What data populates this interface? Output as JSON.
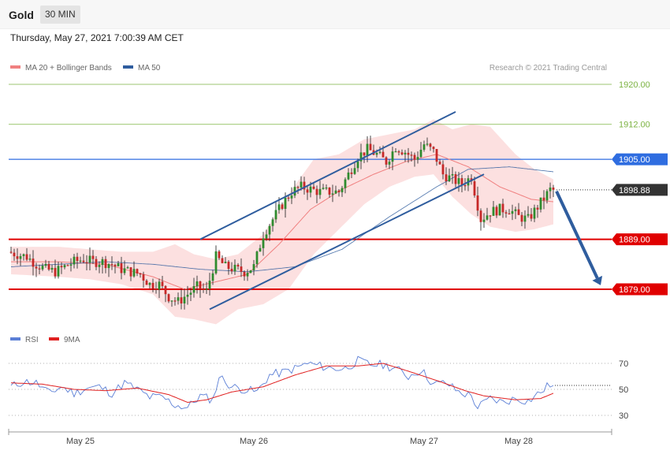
{
  "header": {
    "instrument": "Gold",
    "timeframe": "30 MIN"
  },
  "timestamp": "Thursday, May 27, 2021 7:00:39 AM CET",
  "legend_main": [
    {
      "label": "MA 20 + Bollinger Bands",
      "color": "#f08080"
    },
    {
      "label": "MA 50",
      "color": "#2f5d9e"
    }
  ],
  "credit": "Research © 2021 Trading Central",
  "legend_rsi": [
    {
      "label": "RSI",
      "color": "#5b7fd6"
    },
    {
      "label": "9MA",
      "color": "#e02020"
    }
  ],
  "chart_data": [
    {
      "type": "candlestick",
      "title": "",
      "price_range": [
        1867,
        1923
      ],
      "x_ticks": [
        {
          "label": "May 25",
          "bar": 22
        },
        {
          "label": "May 26",
          "bar": 77
        },
        {
          "label": "May 27",
          "bar": 131
        },
        {
          "label": "May 28",
          "bar": 161
        }
      ],
      "levels": [
        {
          "value": 1920.0,
          "label": "1920.00",
          "color": "#7cb342",
          "kind": "resistance",
          "style": "thin"
        },
        {
          "value": 1912.0,
          "label": "1912.00",
          "color": "#7cb342",
          "kind": "resistance",
          "style": "thin"
        },
        {
          "value": 1905.0,
          "label": "1905.00",
          "color": "#2f6de0",
          "kind": "pivot",
          "style": "solid-badge"
        },
        {
          "value": 1898.88,
          "label": "1898.88",
          "color": "#333333",
          "kind": "last",
          "style": "dotted-badge"
        },
        {
          "value": 1889.0,
          "label": "1889.00",
          "color": "#e00000",
          "kind": "support",
          "style": "thick-badge"
        },
        {
          "value": 1879.0,
          "label": "1879.00",
          "color": "#e00000",
          "kind": "support",
          "style": "thick-badge"
        }
      ],
      "anchors": [
        [
          0,
          1886.5
        ],
        [
          3,
          1886.0
        ],
        [
          6,
          1885.5
        ],
        [
          9,
          1884.0
        ],
        [
          12,
          1883.0
        ],
        [
          15,
          1882.5
        ],
        [
          18,
          1883.5
        ],
        [
          21,
          1884.5
        ],
        [
          24,
          1885.0
        ],
        [
          27,
          1884.5
        ],
        [
          30,
          1884.5
        ],
        [
          33,
          1884.0
        ],
        [
          36,
          1883.0
        ],
        [
          39,
          1882.5
        ],
        [
          42,
          1882.0
        ],
        [
          45,
          1880.0
        ],
        [
          48,
          1880.0
        ],
        [
          51,
          1877.5
        ],
        [
          54,
          1876.5
        ],
        [
          57,
          1878.0
        ],
        [
          60,
          1879.5
        ],
        [
          63,
          1878.5
        ],
        [
          66,
          1885.5
        ],
        [
          69,
          1883.5
        ],
        [
          72,
          1883.0
        ],
        [
          75,
          1882.5
        ],
        [
          78,
          1883.5
        ],
        [
          81,
          1890.0
        ],
        [
          84,
          1893.0
        ],
        [
          87,
          1896.0
        ],
        [
          90,
          1898.5
        ],
        [
          93,
          1899.5
        ],
        [
          96,
          1899.0
        ],
        [
          99,
          1898.5
        ],
        [
          102,
          1898.5
        ],
        [
          105,
          1898.5
        ],
        [
          108,
          1902.0
        ],
        [
          111,
          1905.5
        ],
        [
          114,
          1907.0
        ],
        [
          117,
          1906.0
        ],
        [
          120,
          1904.5
        ],
        [
          123,
          1907.5
        ],
        [
          126,
          1906.5
        ],
        [
          129,
          1905.0
        ],
        [
          132,
          1908.0
        ],
        [
          135,
          1906.5
        ],
        [
          138,
          1902.0
        ],
        [
          141,
          1901.0
        ],
        [
          144,
          1900.0
        ],
        [
          147,
          1901.5
        ],
        [
          150,
          1893.0
        ],
        [
          153,
          1894.5
        ],
        [
          156,
          1895.0
        ],
        [
          159,
          1895.0
        ],
        [
          162,
          1893.5
        ],
        [
          165,
          1893.0
        ],
        [
          168,
          1895.5
        ],
        [
          172,
          1898.9
        ]
      ],
      "ma50": [
        [
          0,
          1883.5
        ],
        [
          15,
          1884.0
        ],
        [
          30,
          1884.5
        ],
        [
          45,
          1884.0
        ],
        [
          60,
          1883.0
        ],
        [
          75,
          1882.5
        ],
        [
          90,
          1883.5
        ],
        [
          105,
          1887.0
        ],
        [
          120,
          1893.5
        ],
        [
          135,
          1899.5
        ],
        [
          145,
          1903.0
        ],
        [
          158,
          1903.5
        ],
        [
          172,
          1902.5
        ]
      ],
      "ma20": [
        [
          0,
          1884.5
        ],
        [
          15,
          1884.5
        ],
        [
          30,
          1884.0
        ],
        [
          45,
          1881.5
        ],
        [
          55,
          1879.0
        ],
        [
          65,
          1880.5
        ],
        [
          75,
          1882.0
        ],
        [
          85,
          1888.0
        ],
        [
          95,
          1895.0
        ],
        [
          105,
          1899.0
        ],
        [
          115,
          1902.0
        ],
        [
          125,
          1904.5
        ],
        [
          135,
          1906.0
        ],
        [
          145,
          1903.5
        ],
        [
          155,
          1899.5
        ],
        [
          165,
          1897.0
        ],
        [
          172,
          1896.5
        ]
      ],
      "bb_upper": [
        [
          0,
          1887.5
        ],
        [
          15,
          1887.5
        ],
        [
          25,
          1887.0
        ],
        [
          35,
          1886.5
        ],
        [
          45,
          1886.5
        ],
        [
          52,
          1888.0
        ],
        [
          58,
          1886.0
        ],
        [
          65,
          1885.0
        ],
        [
          72,
          1886.0
        ],
        [
          80,
          1890.0
        ],
        [
          88,
          1898.0
        ],
        [
          96,
          1905.0
        ],
        [
          104,
          1906.0
        ],
        [
          112,
          1909.0
        ],
        [
          120,
          1910.0
        ],
        [
          128,
          1911.0
        ],
        [
          134,
          1913.0
        ],
        [
          140,
          1911.0
        ],
        [
          146,
          1912.0
        ],
        [
          152,
          1911.5
        ],
        [
          160,
          1906.0
        ],
        [
          166,
          1903.0
        ],
        [
          172,
          1901.0
        ]
      ],
      "bb_lower": [
        [
          0,
          1882.0
        ],
        [
          15,
          1881.5
        ],
        [
          25,
          1881.0
        ],
        [
          35,
          1880.0
        ],
        [
          45,
          1878.0
        ],
        [
          52,
          1873.5
        ],
        [
          58,
          1873.0
        ],
        [
          65,
          1872.0
        ],
        [
          72,
          1875.0
        ],
        [
          80,
          1876.0
        ],
        [
          88,
          1879.0
        ],
        [
          96,
          1886.0
        ],
        [
          104,
          1891.0
        ],
        [
          112,
          1896.0
        ],
        [
          120,
          1899.5
        ],
        [
          128,
          1901.5
        ],
        [
          134,
          1902.0
        ],
        [
          140,
          1897.5
        ],
        [
          146,
          1894.0
        ],
        [
          152,
          1891.5
        ],
        [
          160,
          1890.5
        ],
        [
          166,
          1891.0
        ],
        [
          172,
          1892.0
        ]
      ],
      "channel": {
        "upper": {
          "from": [
            60,
            1889.0
          ],
          "to": [
            141,
            1914.5
          ]
        },
        "lower": {
          "from": [
            63,
            1875.0
          ],
          "to": [
            150,
            1902.0
          ]
        }
      },
      "forecast_arrow": {
        "from": [
          173,
          1898.6
        ],
        "to": [
          187,
          1879.8
        ]
      }
    },
    {
      "type": "line",
      "title": "",
      "ylim": [
        20,
        80
      ],
      "y_ticks": [
        30,
        50,
        70
      ],
      "anchors_rsi": [
        [
          0,
          52
        ],
        [
          4,
          56
        ],
        [
          8,
          55
        ],
        [
          12,
          47
        ],
        [
          16,
          52
        ],
        [
          20,
          47
        ],
        [
          24,
          51
        ],
        [
          28,
          52
        ],
        [
          32,
          47
        ],
        [
          36,
          55
        ],
        [
          40,
          50
        ],
        [
          44,
          44
        ],
        [
          48,
          44
        ],
        [
          52,
          38
        ],
        [
          56,
          36
        ],
        [
          60,
          45
        ],
        [
          64,
          42
        ],
        [
          66,
          60
        ],
        [
          70,
          52
        ],
        [
          74,
          50
        ],
        [
          78,
          48
        ],
        [
          82,
          61
        ],
        [
          86,
          63
        ],
        [
          90,
          66
        ],
        [
          94,
          70
        ],
        [
          98,
          68
        ],
        [
          102,
          66
        ],
        [
          106,
          66
        ],
        [
          110,
          72
        ],
        [
          114,
          69
        ],
        [
          118,
          69
        ],
        [
          122,
          66
        ],
        [
          126,
          60
        ],
        [
          130,
          65
        ],
        [
          134,
          54
        ],
        [
          138,
          55
        ],
        [
          142,
          48
        ],
        [
          146,
          45
        ],
        [
          148,
          36
        ],
        [
          152,
          43
        ],
        [
          156,
          40
        ],
        [
          160,
          43
        ],
        [
          164,
          41
        ],
        [
          168,
          48
        ],
        [
          171,
          54
        ],
        [
          172,
          53
        ]
      ],
      "anchors_9ma": [
        [
          0,
          55
        ],
        [
          10,
          54
        ],
        [
          20,
          50
        ],
        [
          30,
          49
        ],
        [
          40,
          51
        ],
        [
          50,
          46
        ],
        [
          56,
          40
        ],
        [
          62,
          42
        ],
        [
          70,
          48
        ],
        [
          80,
          52
        ],
        [
          90,
          61
        ],
        [
          100,
          68
        ],
        [
          110,
          68
        ],
        [
          118,
          70
        ],
        [
          126,
          64
        ],
        [
          136,
          56
        ],
        [
          144,
          49
        ],
        [
          150,
          45
        ],
        [
          160,
          42
        ],
        [
          168,
          43
        ],
        [
          172,
          47
        ]
      ]
    }
  ]
}
